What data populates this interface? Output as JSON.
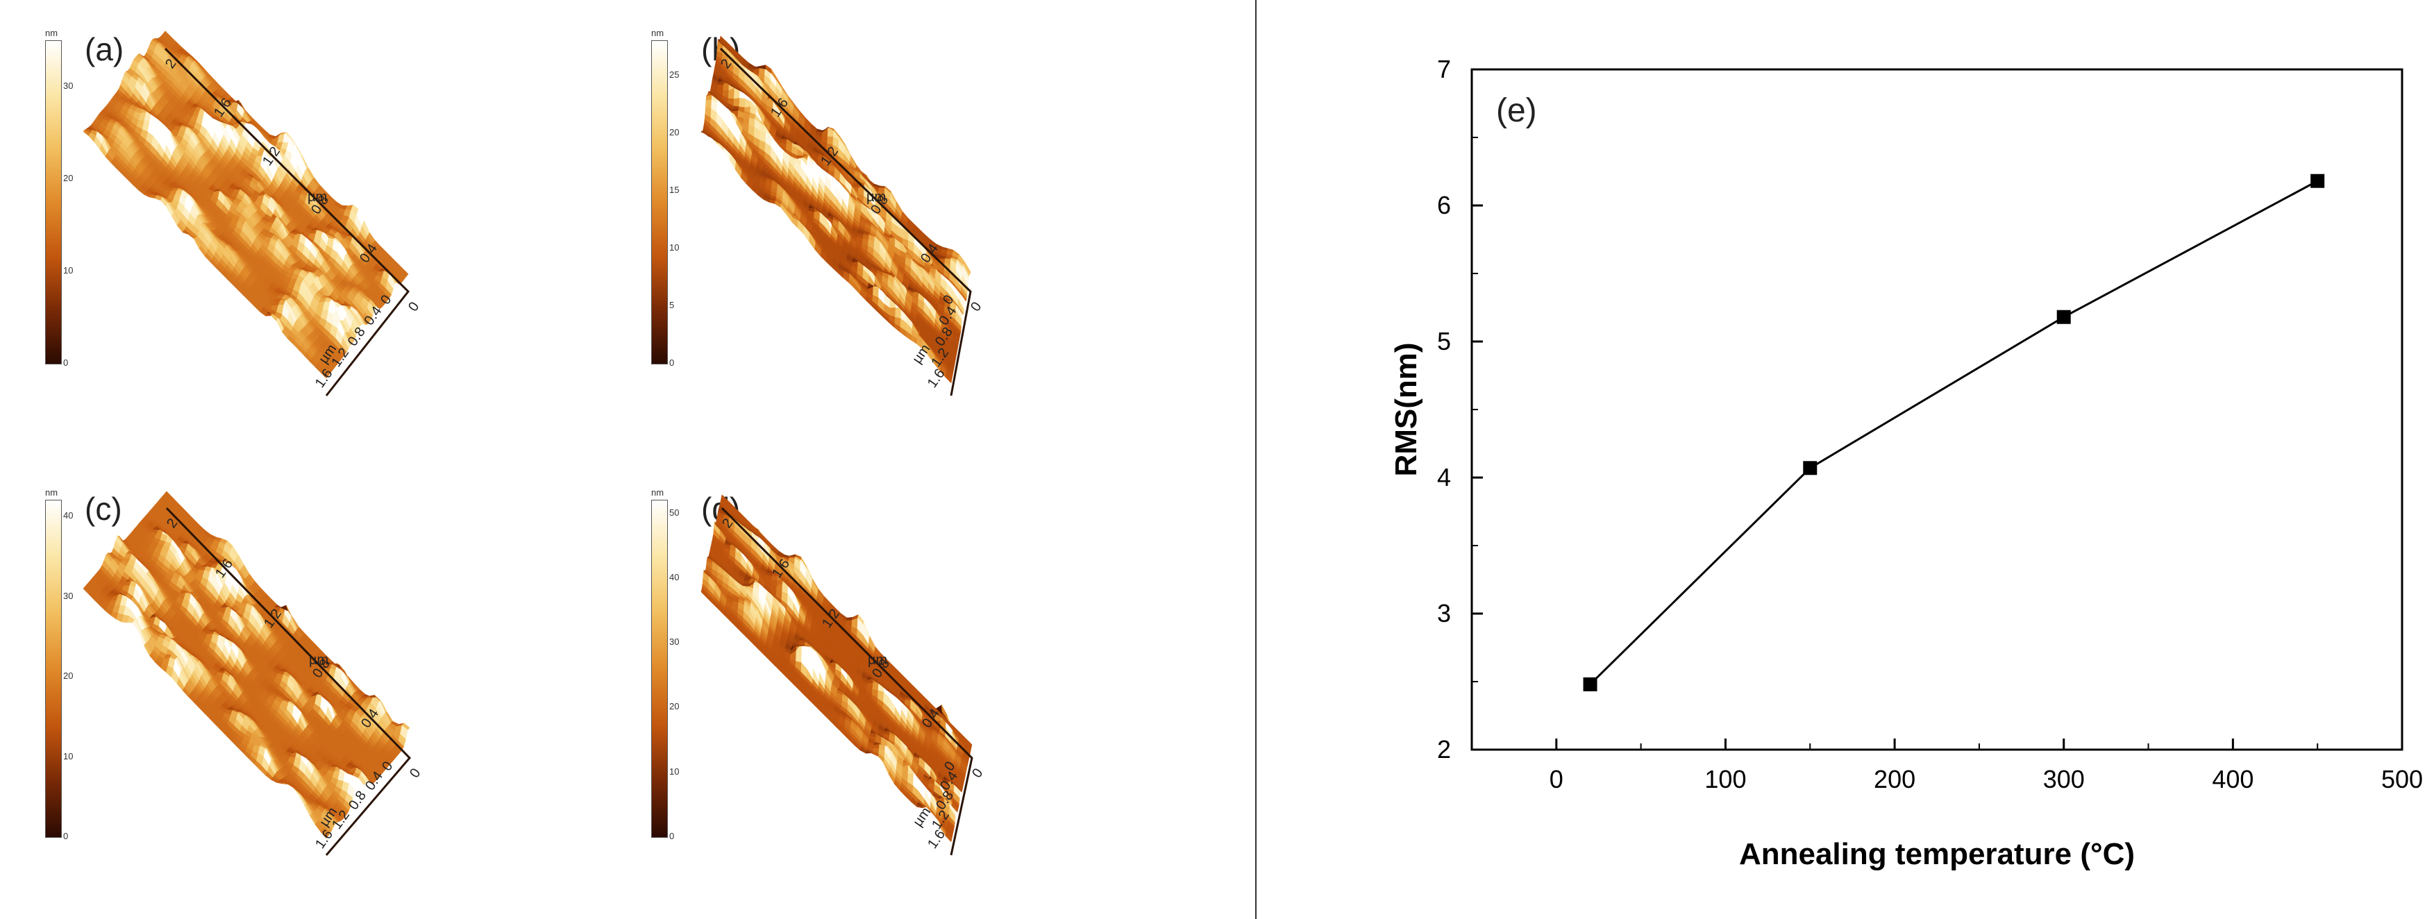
{
  "afm_panels": [
    {
      "label": "(a)",
      "scale_unit": "nm",
      "scale_ticks": [
        "0",
        "10",
        "20",
        "30"
      ],
      "scale_max": 35
    },
    {
      "label": "(b)",
      "scale_unit": "nm",
      "scale_ticks": [
        "0",
        "5",
        "10",
        "15",
        "20",
        "25"
      ],
      "scale_max": 28
    },
    {
      "label": "(c)",
      "scale_unit": "nm",
      "scale_ticks": [
        "0",
        "10",
        "20",
        "30",
        "40"
      ],
      "scale_max": 42
    },
    {
      "label": "(d)",
      "scale_unit": "nm",
      "scale_ticks": [
        "0",
        "10",
        "20",
        "30",
        "40",
        "50"
      ],
      "scale_max": 52
    }
  ],
  "afm_axes": {
    "left_axis_ticks": [
      "0",
      "0.4",
      "0.8",
      "1.2",
      "1.6"
    ],
    "right_axis_ticks": [
      "0",
      "0.4",
      "0.8",
      "1.2",
      "1.6",
      "2"
    ],
    "unit": "µm"
  },
  "afm_colors": [
    "#2a0a02",
    "#7a2a06",
    "#c2560e",
    "#e08a2a",
    "#f2c060",
    "#fbe6a6",
    "#ffffff"
  ],
  "chart_data": {
    "type": "line",
    "panel_label": "(e)",
    "x": [
      20,
      150,
      300,
      450
    ],
    "y": [
      2.48,
      4.07,
      5.18,
      6.18
    ],
    "xlabel": "Annealing temperature (°C)",
    "ylabel": "RMS(nm)",
    "xlim": [
      -50,
      500
    ],
    "ylim": [
      2,
      7
    ],
    "xticks": [
      0,
      100,
      200,
      300,
      400,
      500
    ],
    "yticks": [
      2,
      3,
      4,
      5,
      6,
      7
    ],
    "marker": "square",
    "grid": false,
    "line_color": "#000000"
  }
}
